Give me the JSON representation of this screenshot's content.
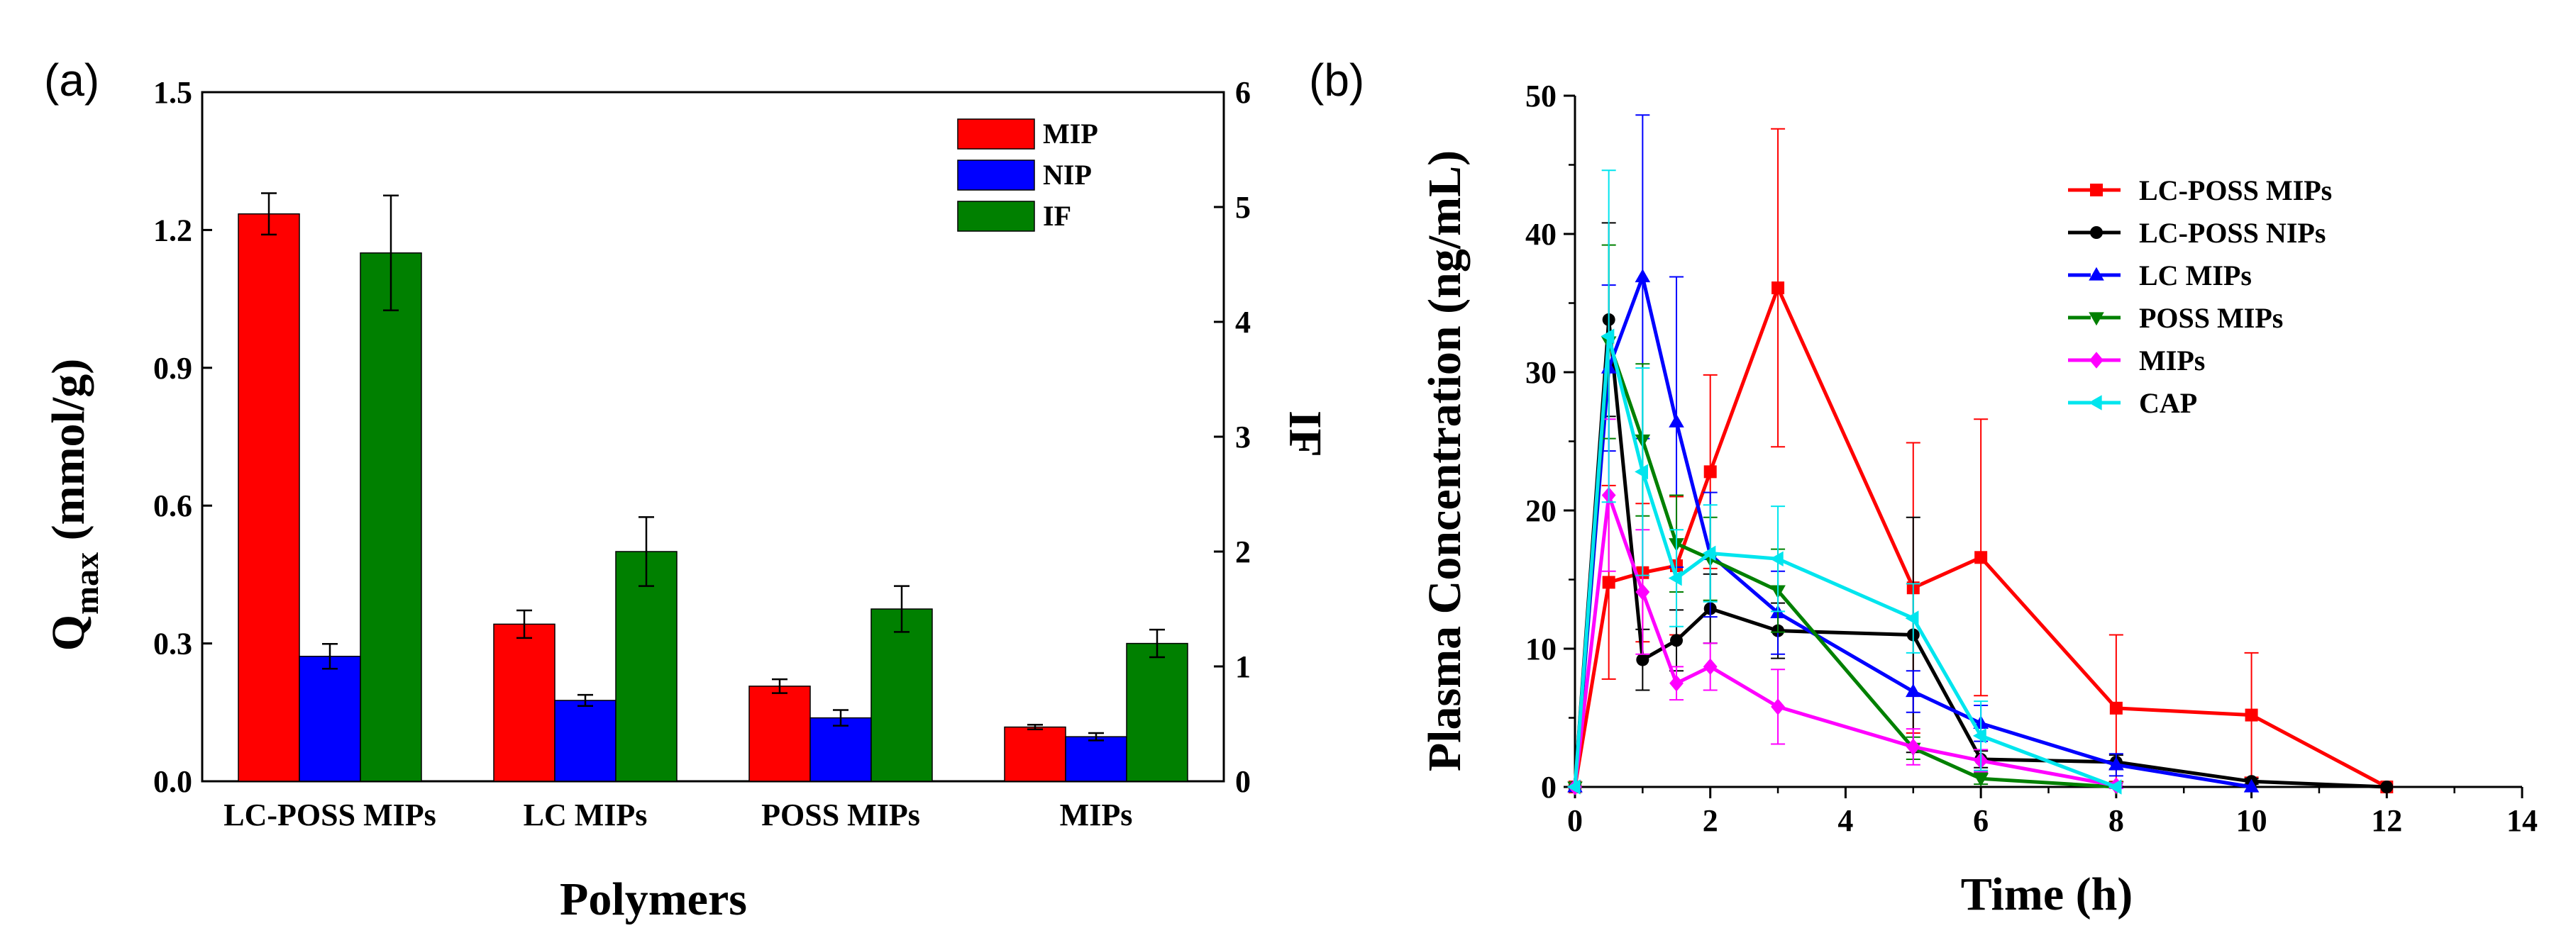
{
  "chart_data": [
    {
      "id": "a",
      "panel_label": "(a)",
      "type": "bar",
      "xlabel": "Polymers",
      "ylabel_main": "Q",
      "ylabel_sub": "max",
      "ylabel_rest": " (mmol/g)",
      "ylabel_right": "IF",
      "categories": [
        "LC-POSS MIPs",
        "LC MIPs",
        "POSS MIPs",
        "MIPs"
      ],
      "ylim": [
        0,
        1.5
      ],
      "yticks": [
        "0.0",
        "0.3",
        "0.6",
        "0.9",
        "1.2",
        "1.5"
      ],
      "ylim_right": [
        0,
        6
      ],
      "yticks_right": [
        "0",
        "1",
        "2",
        "3",
        "4",
        "5",
        "6"
      ],
      "series": [
        {
          "name": "MIP",
          "color": "#ff0000",
          "axis": "left",
          "values": [
            1.235,
            0.342,
            0.207,
            0.118
          ],
          "errors": [
            0.045,
            0.03,
            0.015,
            0.005
          ]
        },
        {
          "name": "NIP",
          "color": "#0000ff",
          "axis": "left",
          "values": [
            0.272,
            0.176,
            0.138,
            0.097
          ],
          "errors": [
            0.027,
            0.012,
            0.017,
            0.008
          ]
        },
        {
          "name": "IF",
          "color": "#008000",
          "axis": "right",
          "values": [
            4.6,
            2.0,
            1.5,
            1.2
          ],
          "errors": [
            0.5,
            0.3,
            0.2,
            0.12
          ]
        }
      ],
      "legend_position": "top-right"
    },
    {
      "id": "b",
      "panel_label": "(b)",
      "type": "line",
      "xlabel": "Time (h)",
      "ylabel": "Plasma Concentration (ng/mL)",
      "xlim": [
        0,
        14
      ],
      "xticks": [
        "0",
        "2",
        "4",
        "6",
        "8",
        "10",
        "12",
        "14"
      ],
      "ylim": [
        0,
        50
      ],
      "yticks": [
        "0",
        "10",
        "20",
        "30",
        "40",
        "50"
      ],
      "series": [
        {
          "name": "LC-POSS MIPs",
          "color": "#ff0000",
          "marker": "square",
          "x": [
            0,
            0.5,
            1,
            1.5,
            2,
            3,
            5,
            6,
            8,
            10,
            12
          ],
          "y": [
            0,
            14.8,
            15.5,
            16,
            22.8,
            36.1,
            14.4,
            16.6,
            5.7,
            5.2,
            0
          ],
          "err": [
            0,
            7,
            5,
            5,
            7,
            11.5,
            10.5,
            10,
            5.3,
            4.5,
            0
          ]
        },
        {
          "name": "LC-POSS NIPs",
          "color": "#000000",
          "marker": "circle",
          "x": [
            0,
            0.5,
            1,
            1.5,
            2,
            3,
            5,
            6,
            8,
            10,
            12
          ],
          "y": [
            0,
            33.8,
            9.2,
            10.6,
            12.9,
            11.3,
            11,
            2,
            1.8,
            0.4,
            0
          ],
          "err": [
            0,
            7,
            2.2,
            2.2,
            2.5,
            2,
            8.5,
            0.6,
            0.5,
            0.2,
            0
          ]
        },
        {
          "name": "LC MIPs",
          "color": "#0000ff",
          "marker": "triangle-up",
          "x": [
            0,
            0.5,
            1,
            1.5,
            2,
            3,
            5,
            6,
            8,
            10
          ],
          "y": [
            0,
            30.3,
            36.9,
            26.4,
            16.8,
            12.6,
            6.9,
            4.6,
            1.6,
            0
          ],
          "err": [
            0,
            6,
            11.7,
            10.5,
            4.5,
            3,
            1.5,
            1.3,
            0.8,
            0
          ]
        },
        {
          "name": "POSS MIPs",
          "color": "#008000",
          "marker": "triangle-down",
          "x": [
            0,
            0.5,
            1,
            1.5,
            2,
            3,
            5,
            6,
            8
          ],
          "y": [
            0,
            32.2,
            25.1,
            17.6,
            16.5,
            14.2,
            2.8,
            0.6,
            0
          ],
          "err": [
            0,
            7,
            5.5,
            3.5,
            3,
            3,
            0.8,
            0.4,
            0
          ]
        },
        {
          "name": "MIPs",
          "color": "#ff00ff",
          "marker": "diamond",
          "x": [
            0,
            0.5,
            1,
            1.5,
            2,
            3,
            5,
            6,
            8
          ],
          "y": [
            0,
            21.1,
            14.1,
            7.5,
            8.7,
            5.8,
            2.9,
            1.9,
            0.1
          ],
          "err": [
            0,
            5.5,
            4.5,
            1.2,
            1.7,
            2.7,
            1.3,
            0.8,
            0.2
          ]
        },
        {
          "name": "CAP",
          "color": "#00e5ee",
          "marker": "triangle-left",
          "x": [
            0,
            0.5,
            1,
            1.5,
            2,
            3,
            5,
            6,
            8
          ],
          "y": [
            0,
            32.6,
            22.8,
            15.1,
            16.9,
            16.5,
            12.2,
            3.7,
            0
          ],
          "err": [
            0,
            12,
            7.5,
            3.5,
            3.5,
            3.8,
            2.5,
            2.5,
            0
          ]
        }
      ],
      "legend_position": "top-right"
    }
  ]
}
